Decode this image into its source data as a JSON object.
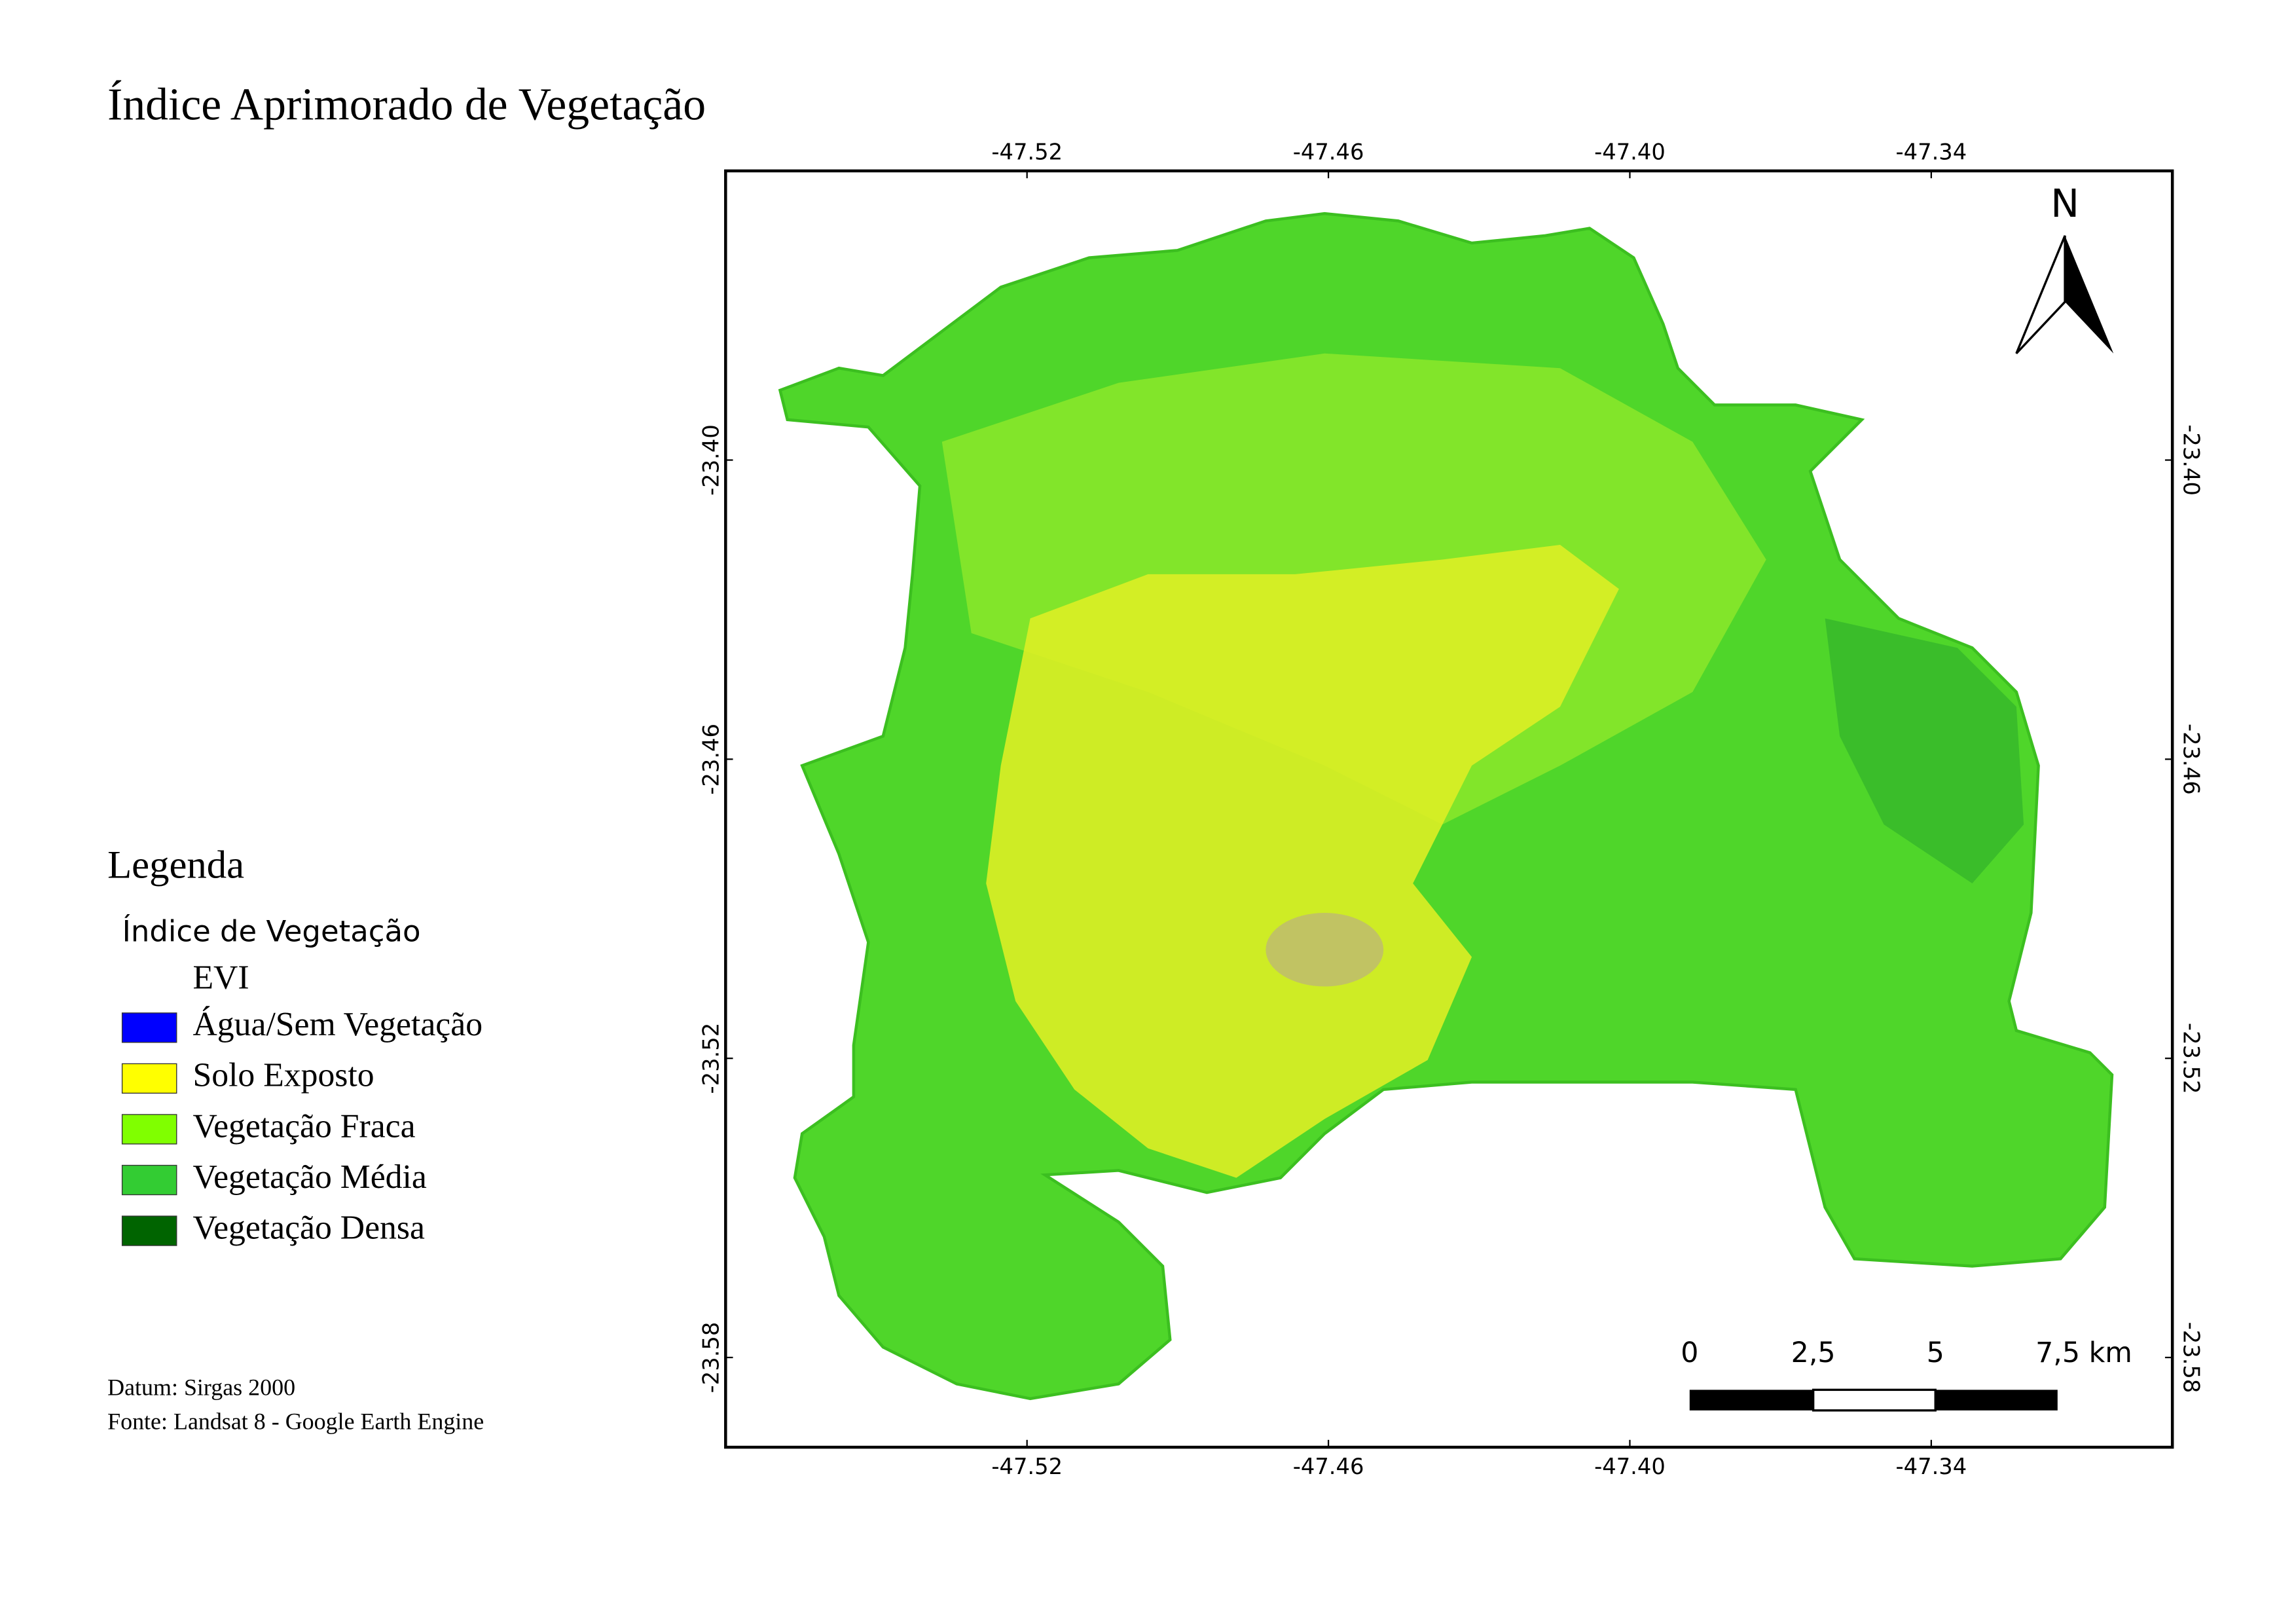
{
  "title": "Índice Aprimorado de Vegetação",
  "map": {
    "xlim": [
      -47.58,
      -47.292
    ],
    "ylim": [
      -23.598,
      -23.342
    ],
    "xticks": [
      -47.52,
      -47.46,
      {
        "value": -47.4,
        "label": "-47.40"
      },
      -47.34
    ],
    "yticks": [
      {
        "value": -23.4,
        "label": "-23.40"
      },
      -23.46,
      -23.52,
      -23.58
    ],
    "north_arrow": "N",
    "scale_bar": [
      "0",
      "2,5",
      "5",
      "7,5 km"
    ]
  },
  "legend": {
    "title": "Legenda",
    "group": "Índice de Vegetação",
    "layer": "EVI",
    "items": [
      {
        "label": "Água/Sem Vegetação",
        "color": "#0000ff"
      },
      {
        "label": "Solo Exposto",
        "color": "#ffff00"
      },
      {
        "label": "Vegetação Fraca",
        "color": "#80ff00"
      },
      {
        "label": "Vegetação Média",
        "color": "#33cc33"
      },
      {
        "label": "Vegetação Densa",
        "color": "#006400"
      }
    ]
  },
  "footer": {
    "datum": "Datum: Sirgas 2000",
    "source": "Fonte: Landsat 8 - Google Earth Engine"
  }
}
